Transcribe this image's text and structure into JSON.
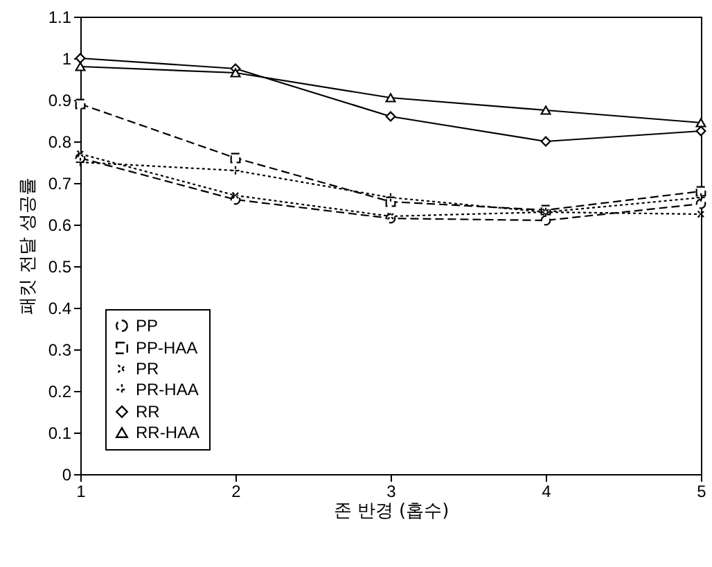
{
  "chart_data": {
    "type": "line",
    "xlabel": "존 반경 (홉수)",
    "ylabel": "패킷 전달 성공률",
    "x": [
      1,
      2,
      3,
      4,
      5
    ],
    "xlim": [
      1,
      5
    ],
    "xticks": [
      1,
      2,
      3,
      4,
      5
    ],
    "ylim": [
      0,
      1.1
    ],
    "yticks": [
      0,
      0.1,
      0.2,
      0.3,
      0.4,
      0.5,
      0.6,
      0.7,
      0.8,
      0.9,
      1,
      1.1
    ],
    "grid": false,
    "legend": "bottom left",
    "series": [
      {
        "name": "PP",
        "color": "#000000",
        "marker": "circle",
        "line_style": "dashed",
        "values": [
          0.76,
          0.66,
          0.615,
          0.61,
          0.65
        ]
      },
      {
        "name": "PP-HAA",
        "color": "#000000",
        "marker": "square",
        "line_style": "dashed",
        "values": [
          0.89,
          0.76,
          0.655,
          0.635,
          0.68
        ]
      },
      {
        "name": "PR",
        "color": "#000000",
        "marker": "x",
        "line_style": "dotted",
        "values": [
          0.77,
          0.67,
          0.62,
          0.63,
          0.625
        ]
      },
      {
        "name": "PR-HAA",
        "color": "#000000",
        "marker": "cross",
        "line_style": "dotted",
        "values": [
          0.75,
          0.73,
          0.665,
          0.63,
          0.665
        ]
      },
      {
        "name": "RR",
        "color": "#000000",
        "marker": "diamond",
        "line_style": "solid",
        "values": [
          1.0,
          0.975,
          0.86,
          0.8,
          0.825
        ]
      },
      {
        "name": "RR-HAA",
        "color": "#000000",
        "marker": "triangle",
        "line_style": "solid",
        "values": [
          0.98,
          0.965,
          0.905,
          0.875,
          0.845
        ]
      }
    ]
  }
}
